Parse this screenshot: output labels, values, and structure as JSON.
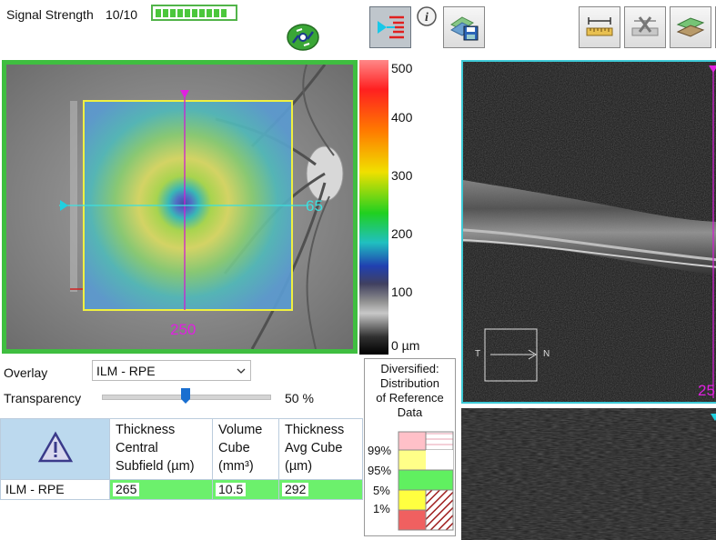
{
  "header": {
    "signal_label": "Signal Strength",
    "signal_value": "10/10",
    "signal_segments": 10,
    "signal_color": "#4bc73b"
  },
  "toolbar": {
    "icons": [
      "overlay-toggle-icon",
      "sync-icon",
      "info-icon",
      "save-image-icon",
      "caliper-icon",
      "delete-measure-icon",
      "layers-icon"
    ]
  },
  "fundus": {
    "border_color": "#3fbe40",
    "horizontal_scan_label": "65",
    "vertical_scan_label": "250",
    "overlay_border_color": "#f0f040",
    "h_line_color": "#3ce0e0",
    "v_line_color": "#d020d0"
  },
  "colorbar": {
    "labels": [
      "500",
      "400",
      "300",
      "200",
      "100",
      "0 µm"
    ]
  },
  "bscan": {
    "border_color": "#3ec9d6",
    "slice_label": "25",
    "orient_left": "T",
    "orient_right": "N"
  },
  "controls": {
    "overlay_label": "Overlay",
    "overlay_value": "ILM - RPE",
    "transparency_label": "Transparency",
    "transparency_value": "50 %",
    "transparency_level": 0.5
  },
  "table": {
    "headers": [
      "Thickness Central Subfield (µm)",
      "Volume Cube (mm³)",
      "Thickness Avg Cube (µm)"
    ],
    "header_lines": [
      [
        "Thickness",
        "Central",
        "Subfield (µm)"
      ],
      [
        "Volume",
        "Cube",
        "(mm³)"
      ],
      [
        "Thickness",
        "Avg Cube",
        "(µm)"
      ]
    ],
    "row_label": "ILM - RPE",
    "values": [
      "265",
      "10.5",
      "292"
    ],
    "row_color": "#6cf06c"
  },
  "distribution": {
    "title_lines": [
      "Diversified:",
      "Distribution",
      "of Reference",
      "Data"
    ],
    "percentiles": [
      "99%",
      "95%",
      "5%",
      "1%"
    ],
    "colors": {
      "above99": "#ffc0c8",
      "95to99": "#ffff80",
      "normal": "#60f060",
      "1to5": "#ffff40",
      "below1": "#f06060"
    }
  }
}
